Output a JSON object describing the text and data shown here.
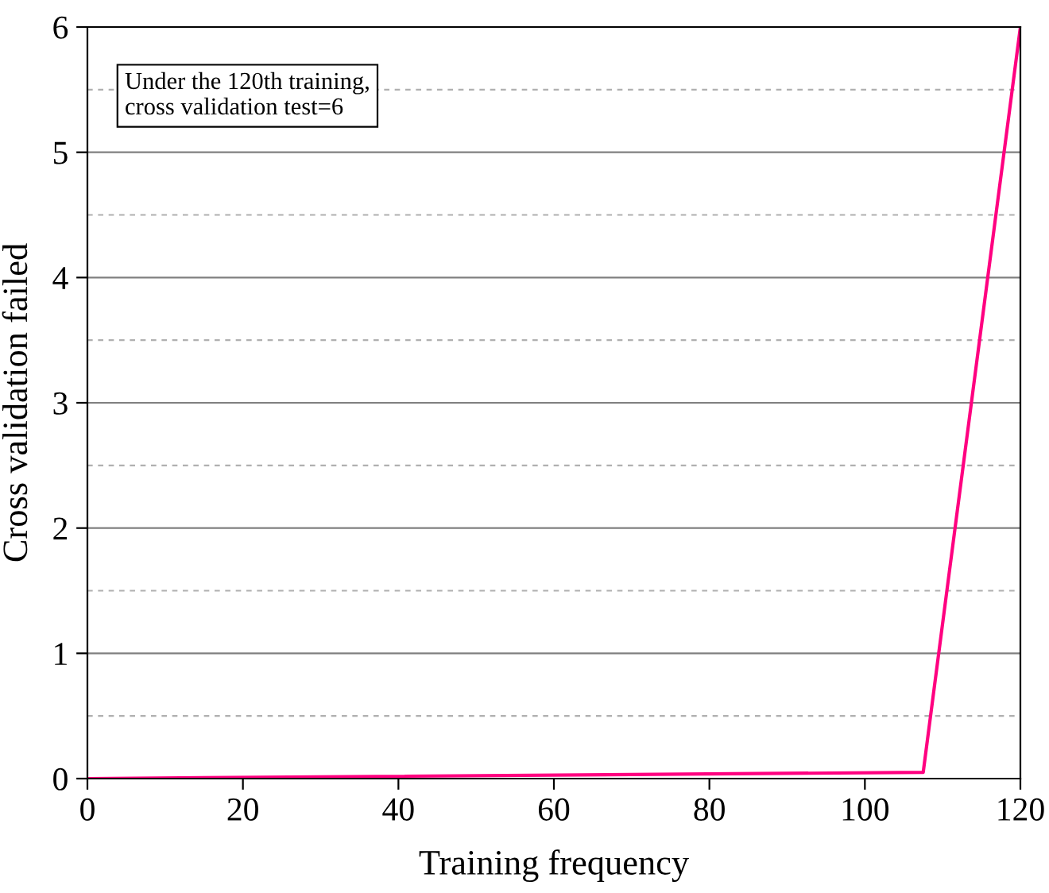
{
  "chart_data": {
    "type": "line",
    "xlabel": "Training frequency",
    "ylabel": "Cross validation failed",
    "x": [
      0,
      107.5,
      120
    ],
    "series": [
      {
        "color": "#ff0080",
        "values": [
          0,
          0.05,
          6
        ]
      }
    ],
    "xlim": [
      0,
      120
    ],
    "xticks": [
      0,
      20,
      40,
      60,
      80,
      100,
      120
    ],
    "ylim": [
      0,
      6
    ],
    "yticks": [
      0,
      1,
      2,
      3,
      4,
      5,
      6
    ],
    "grid": "y",
    "marker": "none",
    "line_style": "solid",
    "annotations": [
      "Under the 120th training,\ncross validation test=6"
    ]
  }
}
